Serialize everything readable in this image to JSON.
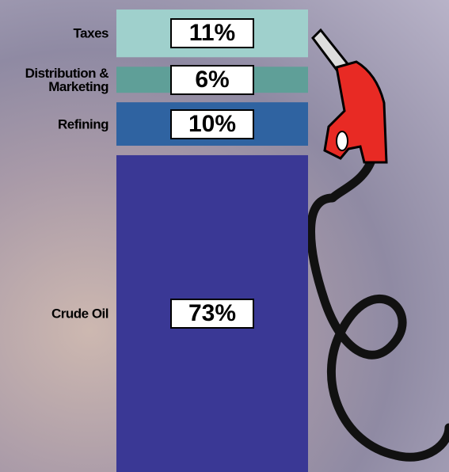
{
  "chart_data": {
    "type": "stacked-bar",
    "categories": [
      "Taxes",
      "Distribution & Marketing",
      "Refining",
      "Crude Oil"
    ],
    "values": [
      11,
      6,
      10,
      73
    ],
    "value_labels": [
      "11%",
      "6%",
      "10%",
      "73%"
    ],
    "colors": [
      "#9fd0cc",
      "#5f9f98",
      "#2f63a1",
      "#3a3895"
    ]
  }
}
